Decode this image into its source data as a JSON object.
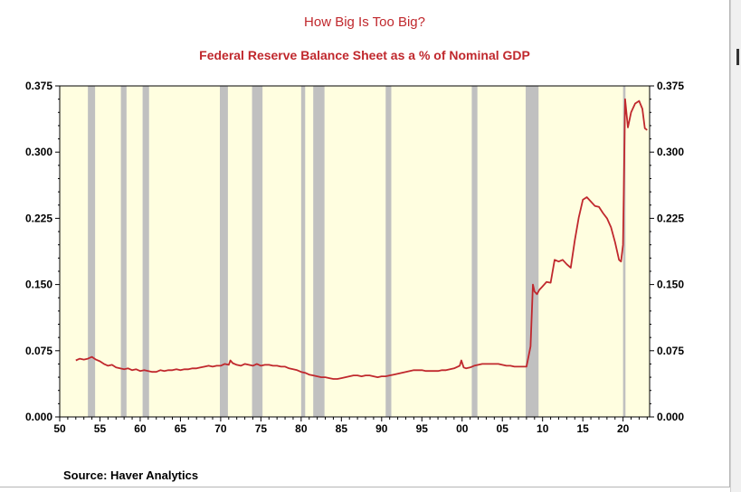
{
  "chart_data": {
    "type": "line",
    "title": "How Big Is Too Big?",
    "subtitle": "Federal Reserve Balance Sheet as a % of Nominal GDP",
    "source": "Source:  Haver Analytics",
    "xlim": [
      1950,
      2023.3
    ],
    "ylim": [
      0,
      0.375
    ],
    "x_tick_values": [
      1950,
      1955,
      1960,
      1965,
      1970,
      1975,
      1980,
      1985,
      1990,
      1995,
      2000,
      2005,
      2010,
      2015,
      2020
    ],
    "x_tick_labels": [
      "50",
      "55",
      "60",
      "65",
      "70",
      "75",
      "80",
      "85",
      "90",
      "95",
      "00",
      "05",
      "10",
      "15",
      "20"
    ],
    "y_tick_values": [
      0,
      0.075,
      0.15,
      0.225,
      0.3,
      0.375
    ],
    "y_tick_labels": [
      "0.000",
      "0.075",
      "0.150",
      "0.225",
      "0.300",
      "0.375"
    ],
    "grid": false,
    "plot_background": "#fffee0",
    "recession_color": "#c0c0c0",
    "line_color": "#c0282d",
    "recessions": [
      [
        1953.5,
        1954.4
      ],
      [
        1957.6,
        1958.3
      ],
      [
        1960.3,
        1961.1
      ],
      [
        1969.9,
        1970.9
      ],
      [
        1973.9,
        1975.2
      ],
      [
        1980.0,
        1980.5
      ],
      [
        1981.5,
        1982.9
      ],
      [
        1990.5,
        1991.2
      ],
      [
        2001.2,
        2001.9
      ],
      [
        2007.9,
        2009.5
      ],
      [
        2020.0,
        2020.3
      ]
    ],
    "series": [
      {
        "points": [
          [
            1952.0,
            0.064
          ],
          [
            1952.5,
            0.066
          ],
          [
            1953.0,
            0.065
          ],
          [
            1953.5,
            0.066
          ],
          [
            1954.0,
            0.068
          ],
          [
            1954.5,
            0.065
          ],
          [
            1955.0,
            0.063
          ],
          [
            1955.5,
            0.06
          ],
          [
            1956.0,
            0.058
          ],
          [
            1956.5,
            0.059
          ],
          [
            1957.0,
            0.056
          ],
          [
            1957.5,
            0.055
          ],
          [
            1958.0,
            0.054
          ],
          [
            1958.5,
            0.055
          ],
          [
            1959.0,
            0.053
          ],
          [
            1959.5,
            0.054
          ],
          [
            1960.0,
            0.052
          ],
          [
            1960.5,
            0.053
          ],
          [
            1961.0,
            0.052
          ],
          [
            1961.5,
            0.051
          ],
          [
            1962.0,
            0.051
          ],
          [
            1962.5,
            0.053
          ],
          [
            1963.0,
            0.052
          ],
          [
            1963.5,
            0.053
          ],
          [
            1964.0,
            0.053
          ],
          [
            1964.5,
            0.054
          ],
          [
            1965.0,
            0.053
          ],
          [
            1965.5,
            0.054
          ],
          [
            1966.0,
            0.054
          ],
          [
            1966.5,
            0.055
          ],
          [
            1967.0,
            0.055
          ],
          [
            1967.5,
            0.056
          ],
          [
            1968.0,
            0.057
          ],
          [
            1968.5,
            0.058
          ],
          [
            1969.0,
            0.057
          ],
          [
            1969.5,
            0.058
          ],
          [
            1970.0,
            0.058
          ],
          [
            1970.5,
            0.06
          ],
          [
            1971.0,
            0.059
          ],
          [
            1971.2,
            0.064
          ],
          [
            1971.5,
            0.061
          ],
          [
            1972.0,
            0.059
          ],
          [
            1972.5,
            0.058
          ],
          [
            1973.0,
            0.06
          ],
          [
            1973.5,
            0.059
          ],
          [
            1974.0,
            0.058
          ],
          [
            1974.5,
            0.06
          ],
          [
            1975.0,
            0.058
          ],
          [
            1975.5,
            0.059
          ],
          [
            1976.0,
            0.059
          ],
          [
            1976.5,
            0.058
          ],
          [
            1977.0,
            0.058
          ],
          [
            1977.5,
            0.057
          ],
          [
            1978.0,
            0.057
          ],
          [
            1978.5,
            0.055
          ],
          [
            1979.0,
            0.054
          ],
          [
            1979.5,
            0.053
          ],
          [
            1980.0,
            0.051
          ],
          [
            1980.5,
            0.05
          ],
          [
            1981.0,
            0.048
          ],
          [
            1981.5,
            0.047
          ],
          [
            1982.0,
            0.046
          ],
          [
            1982.5,
            0.045
          ],
          [
            1983.0,
            0.045
          ],
          [
            1983.5,
            0.044
          ],
          [
            1984.0,
            0.043
          ],
          [
            1984.5,
            0.043
          ],
          [
            1985.0,
            0.044
          ],
          [
            1985.5,
            0.045
          ],
          [
            1986.0,
            0.046
          ],
          [
            1986.5,
            0.047
          ],
          [
            1987.0,
            0.047
          ],
          [
            1987.5,
            0.046
          ],
          [
            1988.0,
            0.047
          ],
          [
            1988.5,
            0.047
          ],
          [
            1989.0,
            0.046
          ],
          [
            1989.5,
            0.045
          ],
          [
            1990.0,
            0.046
          ],
          [
            1990.5,
            0.046
          ],
          [
            1991.0,
            0.047
          ],
          [
            1991.5,
            0.048
          ],
          [
            1992.0,
            0.049
          ],
          [
            1992.5,
            0.05
          ],
          [
            1993.0,
            0.051
          ],
          [
            1993.5,
            0.052
          ],
          [
            1994.0,
            0.053
          ],
          [
            1994.5,
            0.053
          ],
          [
            1995.0,
            0.053
          ],
          [
            1995.5,
            0.052
          ],
          [
            1996.0,
            0.052
          ],
          [
            1996.5,
            0.052
          ],
          [
            1997.0,
            0.052
          ],
          [
            1997.5,
            0.053
          ],
          [
            1998.0,
            0.053
          ],
          [
            1998.5,
            0.054
          ],
          [
            1999.0,
            0.055
          ],
          [
            1999.7,
            0.058
          ],
          [
            1999.9,
            0.064
          ],
          [
            2000.2,
            0.056
          ],
          [
            2000.5,
            0.055
          ],
          [
            2001.0,
            0.056
          ],
          [
            2001.5,
            0.058
          ],
          [
            2002.0,
            0.059
          ],
          [
            2002.5,
            0.06
          ],
          [
            2003.0,
            0.06
          ],
          [
            2003.5,
            0.06
          ],
          [
            2004.0,
            0.06
          ],
          [
            2004.5,
            0.06
          ],
          [
            2005.0,
            0.059
          ],
          [
            2005.5,
            0.058
          ],
          [
            2006.0,
            0.058
          ],
          [
            2006.5,
            0.057
          ],
          [
            2007.0,
            0.057
          ],
          [
            2007.5,
            0.057
          ],
          [
            2008.0,
            0.057
          ],
          [
            2008.5,
            0.08
          ],
          [
            2008.8,
            0.15
          ],
          [
            2009.0,
            0.142
          ],
          [
            2009.3,
            0.139
          ],
          [
            2009.6,
            0.144
          ],
          [
            2010.0,
            0.148
          ],
          [
            2010.5,
            0.153
          ],
          [
            2011.0,
            0.152
          ],
          [
            2011.5,
            0.178
          ],
          [
            2012.0,
            0.176
          ],
          [
            2012.5,
            0.178
          ],
          [
            2013.0,
            0.173
          ],
          [
            2013.5,
            0.169
          ],
          [
            2014.0,
            0.2
          ],
          [
            2014.5,
            0.226
          ],
          [
            2015.0,
            0.246
          ],
          [
            2015.5,
            0.249
          ],
          [
            2016.0,
            0.244
          ],
          [
            2016.5,
            0.239
          ],
          [
            2017.0,
            0.238
          ],
          [
            2017.5,
            0.231
          ],
          [
            2018.0,
            0.225
          ],
          [
            2018.5,
            0.215
          ],
          [
            2019.0,
            0.198
          ],
          [
            2019.5,
            0.178
          ],
          [
            2019.75,
            0.176
          ],
          [
            2020.0,
            0.195
          ],
          [
            2020.25,
            0.36
          ],
          [
            2020.6,
            0.328
          ],
          [
            2021.0,
            0.345
          ],
          [
            2021.5,
            0.355
          ],
          [
            2022.0,
            0.358
          ],
          [
            2022.4,
            0.349
          ],
          [
            2022.7,
            0.327
          ],
          [
            2023.0,
            0.325
          ]
        ]
      }
    ]
  }
}
